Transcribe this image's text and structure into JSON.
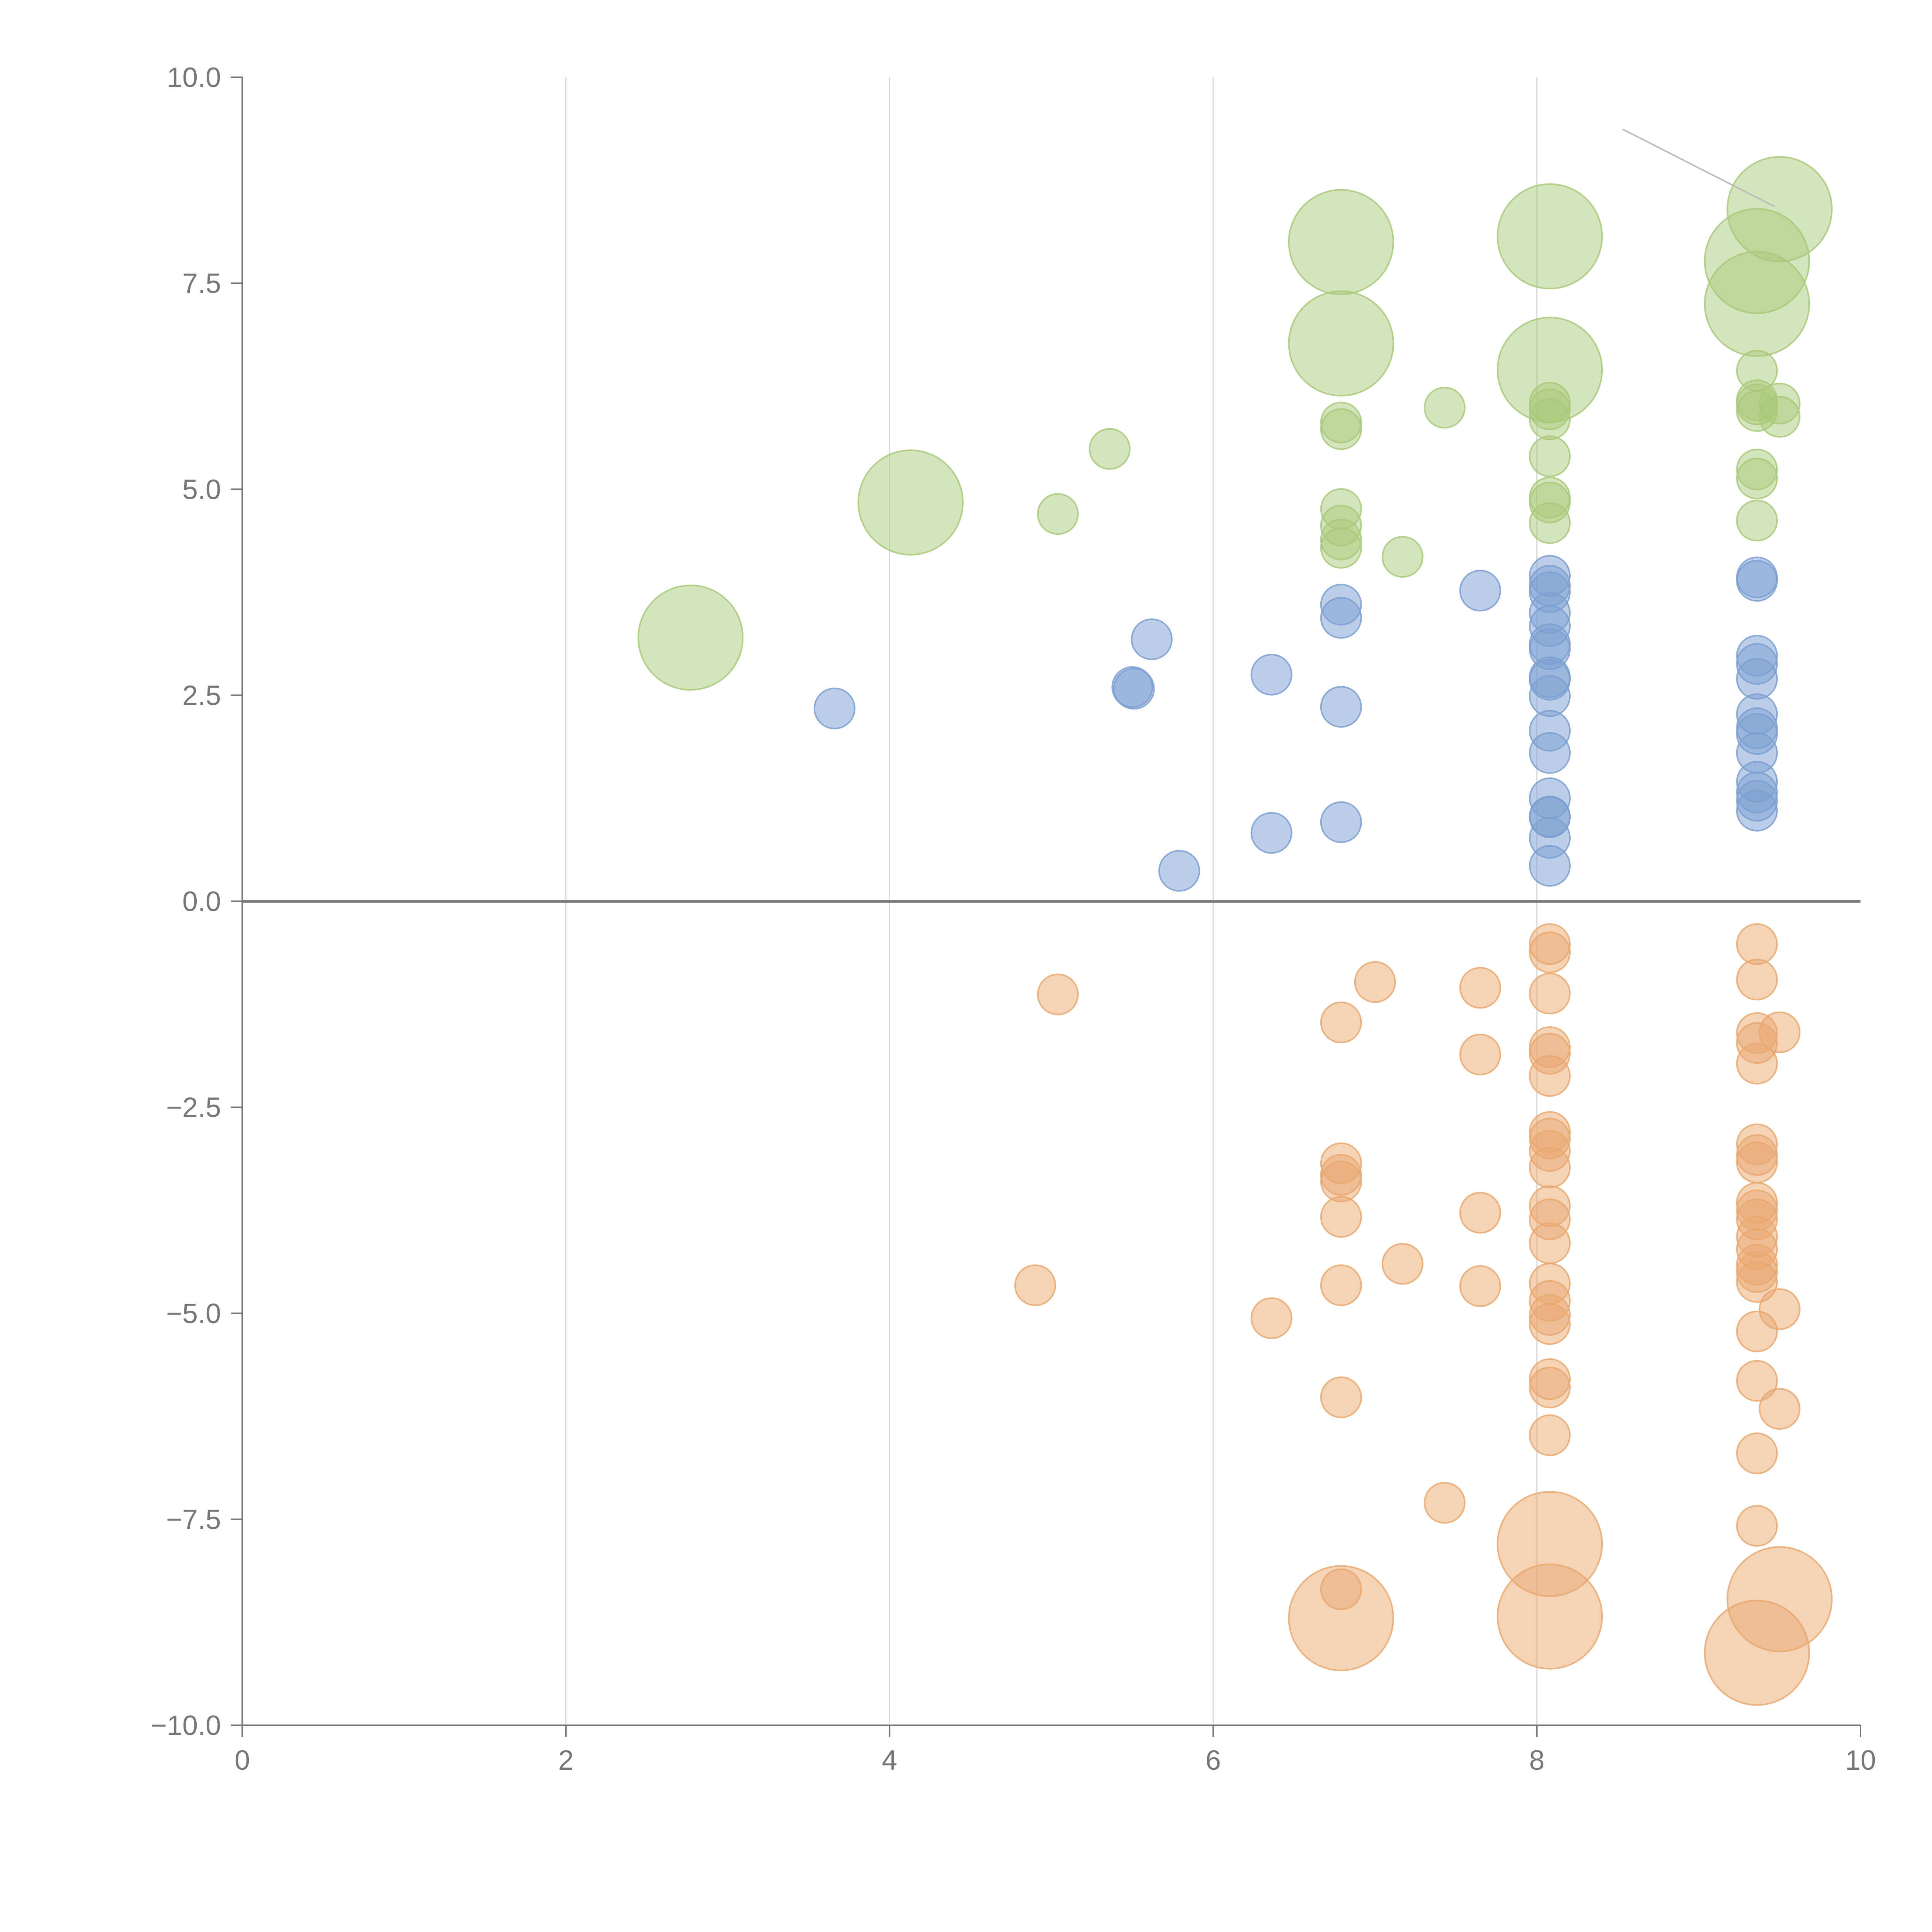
{
  "chart_data": {
    "type": "scatter",
    "title": "",
    "xlabel": "",
    "ylabel": "",
    "xlim": [
      0,
      10
    ],
    "ylim": [
      -10,
      10
    ],
    "x_ticks": [
      "0",
      "2",
      "4",
      "6",
      "8",
      "10"
    ],
    "y_ticks": [
      "10.0",
      "7.5",
      "5.0",
      "2.5",
      "0.0",
      "−2.5",
      "−5.0",
      "−7.5",
      "−10.0"
    ],
    "x_grid": [
      2,
      4,
      6,
      8
    ],
    "zero_line": 0,
    "series": [
      {
        "name": "green",
        "color": "#a9c97a",
        "points": [
          [
            2.77,
            3.2,
            2.6
          ],
          [
            4.13,
            4.84,
            2.6
          ],
          [
            5.04,
            4.7,
            1.0
          ],
          [
            5.36,
            5.49,
            1.0
          ],
          [
            6.79,
            8.0,
            2.6
          ],
          [
            6.79,
            6.77,
            2.6
          ],
          [
            6.79,
            5.81,
            1.0
          ],
          [
            6.79,
            5.73,
            1.0
          ],
          [
            6.79,
            4.76,
            1.0
          ],
          [
            6.79,
            4.56,
            1.0
          ],
          [
            6.79,
            4.39,
            1.0
          ],
          [
            6.79,
            4.29,
            1.0
          ],
          [
            7.17,
            4.18,
            1.0
          ],
          [
            7.43,
            5.99,
            1.0
          ],
          [
            8.08,
            8.07,
            2.6
          ],
          [
            8.08,
            6.45,
            2.6
          ],
          [
            8.08,
            6.05,
            1.0
          ],
          [
            8.08,
            5.97,
            1.0
          ],
          [
            8.08,
            5.85,
            1.0
          ],
          [
            8.08,
            5.4,
            1.0
          ],
          [
            8.08,
            4.9,
            1.0
          ],
          [
            8.08,
            4.84,
            1.0
          ],
          [
            8.08,
            4.59,
            1.0
          ],
          [
            9.36,
            7.77,
            2.6
          ],
          [
            9.36,
            7.25,
            2.6
          ],
          [
            9.36,
            6.44,
            1.0
          ],
          [
            9.36,
            6.08,
            1.0
          ],
          [
            9.36,
            6.03,
            1.0
          ],
          [
            9.36,
            5.95,
            1.0
          ],
          [
            9.36,
            5.24,
            1.0
          ],
          [
            9.36,
            5.13,
            1.0
          ],
          [
            9.36,
            4.62,
            1.0
          ],
          [
            9.5,
            8.4,
            2.6
          ],
          [
            9.5,
            6.04,
            1.0
          ],
          [
            9.5,
            5.88,
            1.0
          ]
        ]
      },
      {
        "name": "blue",
        "color": "#7b9fd1",
        "points": [
          [
            3.66,
            2.34,
            1.0
          ],
          [
            5.5,
            2.6,
            1.0
          ],
          [
            5.51,
            2.58,
            1.0
          ],
          [
            5.62,
            3.18,
            1.0
          ],
          [
            5.79,
            0.37,
            1.0
          ],
          [
            6.36,
            2.75,
            1.0
          ],
          [
            6.36,
            0.83,
            1.0
          ],
          [
            6.79,
            3.6,
            1.0
          ],
          [
            6.79,
            3.44,
            1.0
          ],
          [
            6.79,
            2.36,
            1.0
          ],
          [
            6.79,
            0.96,
            1.0
          ],
          [
            7.65,
            3.77,
            1.0
          ],
          [
            8.08,
            3.95,
            1.0
          ],
          [
            8.08,
            3.83,
            1.0
          ],
          [
            8.08,
            3.75,
            1.0
          ],
          [
            8.08,
            3.5,
            1.0
          ],
          [
            8.08,
            3.34,
            1.0
          ],
          [
            8.08,
            3.12,
            1.0
          ],
          [
            8.08,
            3.06,
            1.0
          ],
          [
            8.08,
            2.72,
            1.0
          ],
          [
            8.08,
            2.69,
            1.0
          ],
          [
            8.08,
            2.49,
            1.0
          ],
          [
            8.08,
            2.07,
            1.0
          ],
          [
            8.08,
            1.8,
            1.0
          ],
          [
            8.08,
            1.25,
            1.0
          ],
          [
            8.08,
            1.03,
            1.0
          ],
          [
            8.08,
            1.02,
            1.0
          ],
          [
            8.08,
            0.77,
            1.0
          ],
          [
            8.08,
            0.43,
            1.0
          ],
          [
            9.36,
            3.93,
            1.0
          ],
          [
            9.36,
            3.89,
            1.0
          ],
          [
            9.36,
            2.98,
            1.0
          ],
          [
            9.36,
            2.88,
            1.0
          ],
          [
            9.36,
            2.7,
            1.0
          ],
          [
            9.36,
            2.27,
            1.0
          ],
          [
            9.36,
            2.1,
            1.0
          ],
          [
            9.36,
            2.03,
            1.0
          ],
          [
            9.36,
            1.8,
            1.0
          ],
          [
            9.36,
            1.45,
            1.0
          ],
          [
            9.36,
            1.32,
            1.0
          ],
          [
            9.36,
            1.22,
            1.0
          ],
          [
            9.36,
            1.1,
            1.0
          ]
        ]
      },
      {
        "name": "orange",
        "color": "#e9a86f",
        "points": [
          [
            4.9,
            -4.66,
            1.0
          ],
          [
            5.04,
            -1.13,
            1.0
          ],
          [
            6.36,
            -5.06,
            1.0
          ],
          [
            6.79,
            -1.47,
            1.0
          ],
          [
            6.79,
            -3.18,
            1.0
          ],
          [
            6.79,
            -3.32,
            1.0
          ],
          [
            6.79,
            -3.4,
            1.0
          ],
          [
            6.79,
            -3.83,
            1.0
          ],
          [
            6.79,
            -4.66,
            1.0
          ],
          [
            6.79,
            -6.02,
            1.0
          ],
          [
            6.79,
            -8.35,
            1.0
          ],
          [
            6.79,
            -8.7,
            2.6
          ],
          [
            7.0,
            -0.98,
            1.0
          ],
          [
            7.17,
            -4.4,
            1.0
          ],
          [
            7.43,
            -7.3,
            1.0
          ],
          [
            7.65,
            -1.05,
            1.0
          ],
          [
            7.65,
            -1.86,
            1.0
          ],
          [
            7.65,
            -3.78,
            1.0
          ],
          [
            7.65,
            -4.67,
            1.0
          ],
          [
            8.08,
            -0.52,
            1.0
          ],
          [
            8.08,
            -0.62,
            1.0
          ],
          [
            8.08,
            -1.12,
            1.0
          ],
          [
            8.08,
            -1.77,
            1.0
          ],
          [
            8.08,
            -1.85,
            1.0
          ],
          [
            8.08,
            -2.12,
            1.0
          ],
          [
            8.08,
            -2.8,
            1.0
          ],
          [
            8.08,
            -2.88,
            1.0
          ],
          [
            8.08,
            -3.03,
            1.0
          ],
          [
            8.08,
            -3.23,
            1.0
          ],
          [
            8.08,
            -3.7,
            1.0
          ],
          [
            8.08,
            -3.86,
            1.0
          ],
          [
            8.08,
            -4.15,
            1.0
          ],
          [
            8.08,
            -4.64,
            1.0
          ],
          [
            8.08,
            -4.85,
            1.0
          ],
          [
            8.08,
            -5.02,
            1.0
          ],
          [
            8.08,
            -5.13,
            1.0
          ],
          [
            8.08,
            -5.8,
            1.0
          ],
          [
            8.08,
            -5.9,
            1.0
          ],
          [
            8.08,
            -6.48,
            1.0
          ],
          [
            8.08,
            -7.8,
            2.6
          ],
          [
            8.08,
            -8.68,
            2.6
          ],
          [
            9.36,
            -0.52,
            1.0
          ],
          [
            9.36,
            -0.95,
            1.0
          ],
          [
            9.36,
            -1.6,
            1.0
          ],
          [
            9.36,
            -1.72,
            1.0
          ],
          [
            9.36,
            -1.97,
            1.0
          ],
          [
            9.36,
            -2.95,
            1.0
          ],
          [
            9.36,
            -3.08,
            1.0
          ],
          [
            9.36,
            -3.17,
            1.0
          ],
          [
            9.36,
            -3.66,
            1.0
          ],
          [
            9.36,
            -3.75,
            1.0
          ],
          [
            9.36,
            -3.86,
            1.0
          ],
          [
            9.36,
            -4.07,
            1.0
          ],
          [
            9.36,
            -4.22,
            1.0
          ],
          [
            9.36,
            -4.41,
            1.0
          ],
          [
            9.36,
            -4.5,
            1.0
          ],
          [
            9.36,
            -4.62,
            1.0
          ],
          [
            9.36,
            -5.22,
            1.0
          ],
          [
            9.36,
            -5.82,
            1.0
          ],
          [
            9.36,
            -6.7,
            1.0
          ],
          [
            9.36,
            -7.58,
            1.0
          ],
          [
            9.36,
            -9.12,
            2.6
          ],
          [
            9.5,
            -1.59,
            1.0
          ],
          [
            9.5,
            -4.95,
            1.0
          ],
          [
            9.5,
            -6.16,
            1.0
          ],
          [
            9.5,
            -8.47,
            2.6
          ]
        ]
      }
    ],
    "annotation_line": {
      "from": [
        8.53,
        9.37
      ],
      "to": [
        9.47,
        8.43
      ]
    }
  }
}
